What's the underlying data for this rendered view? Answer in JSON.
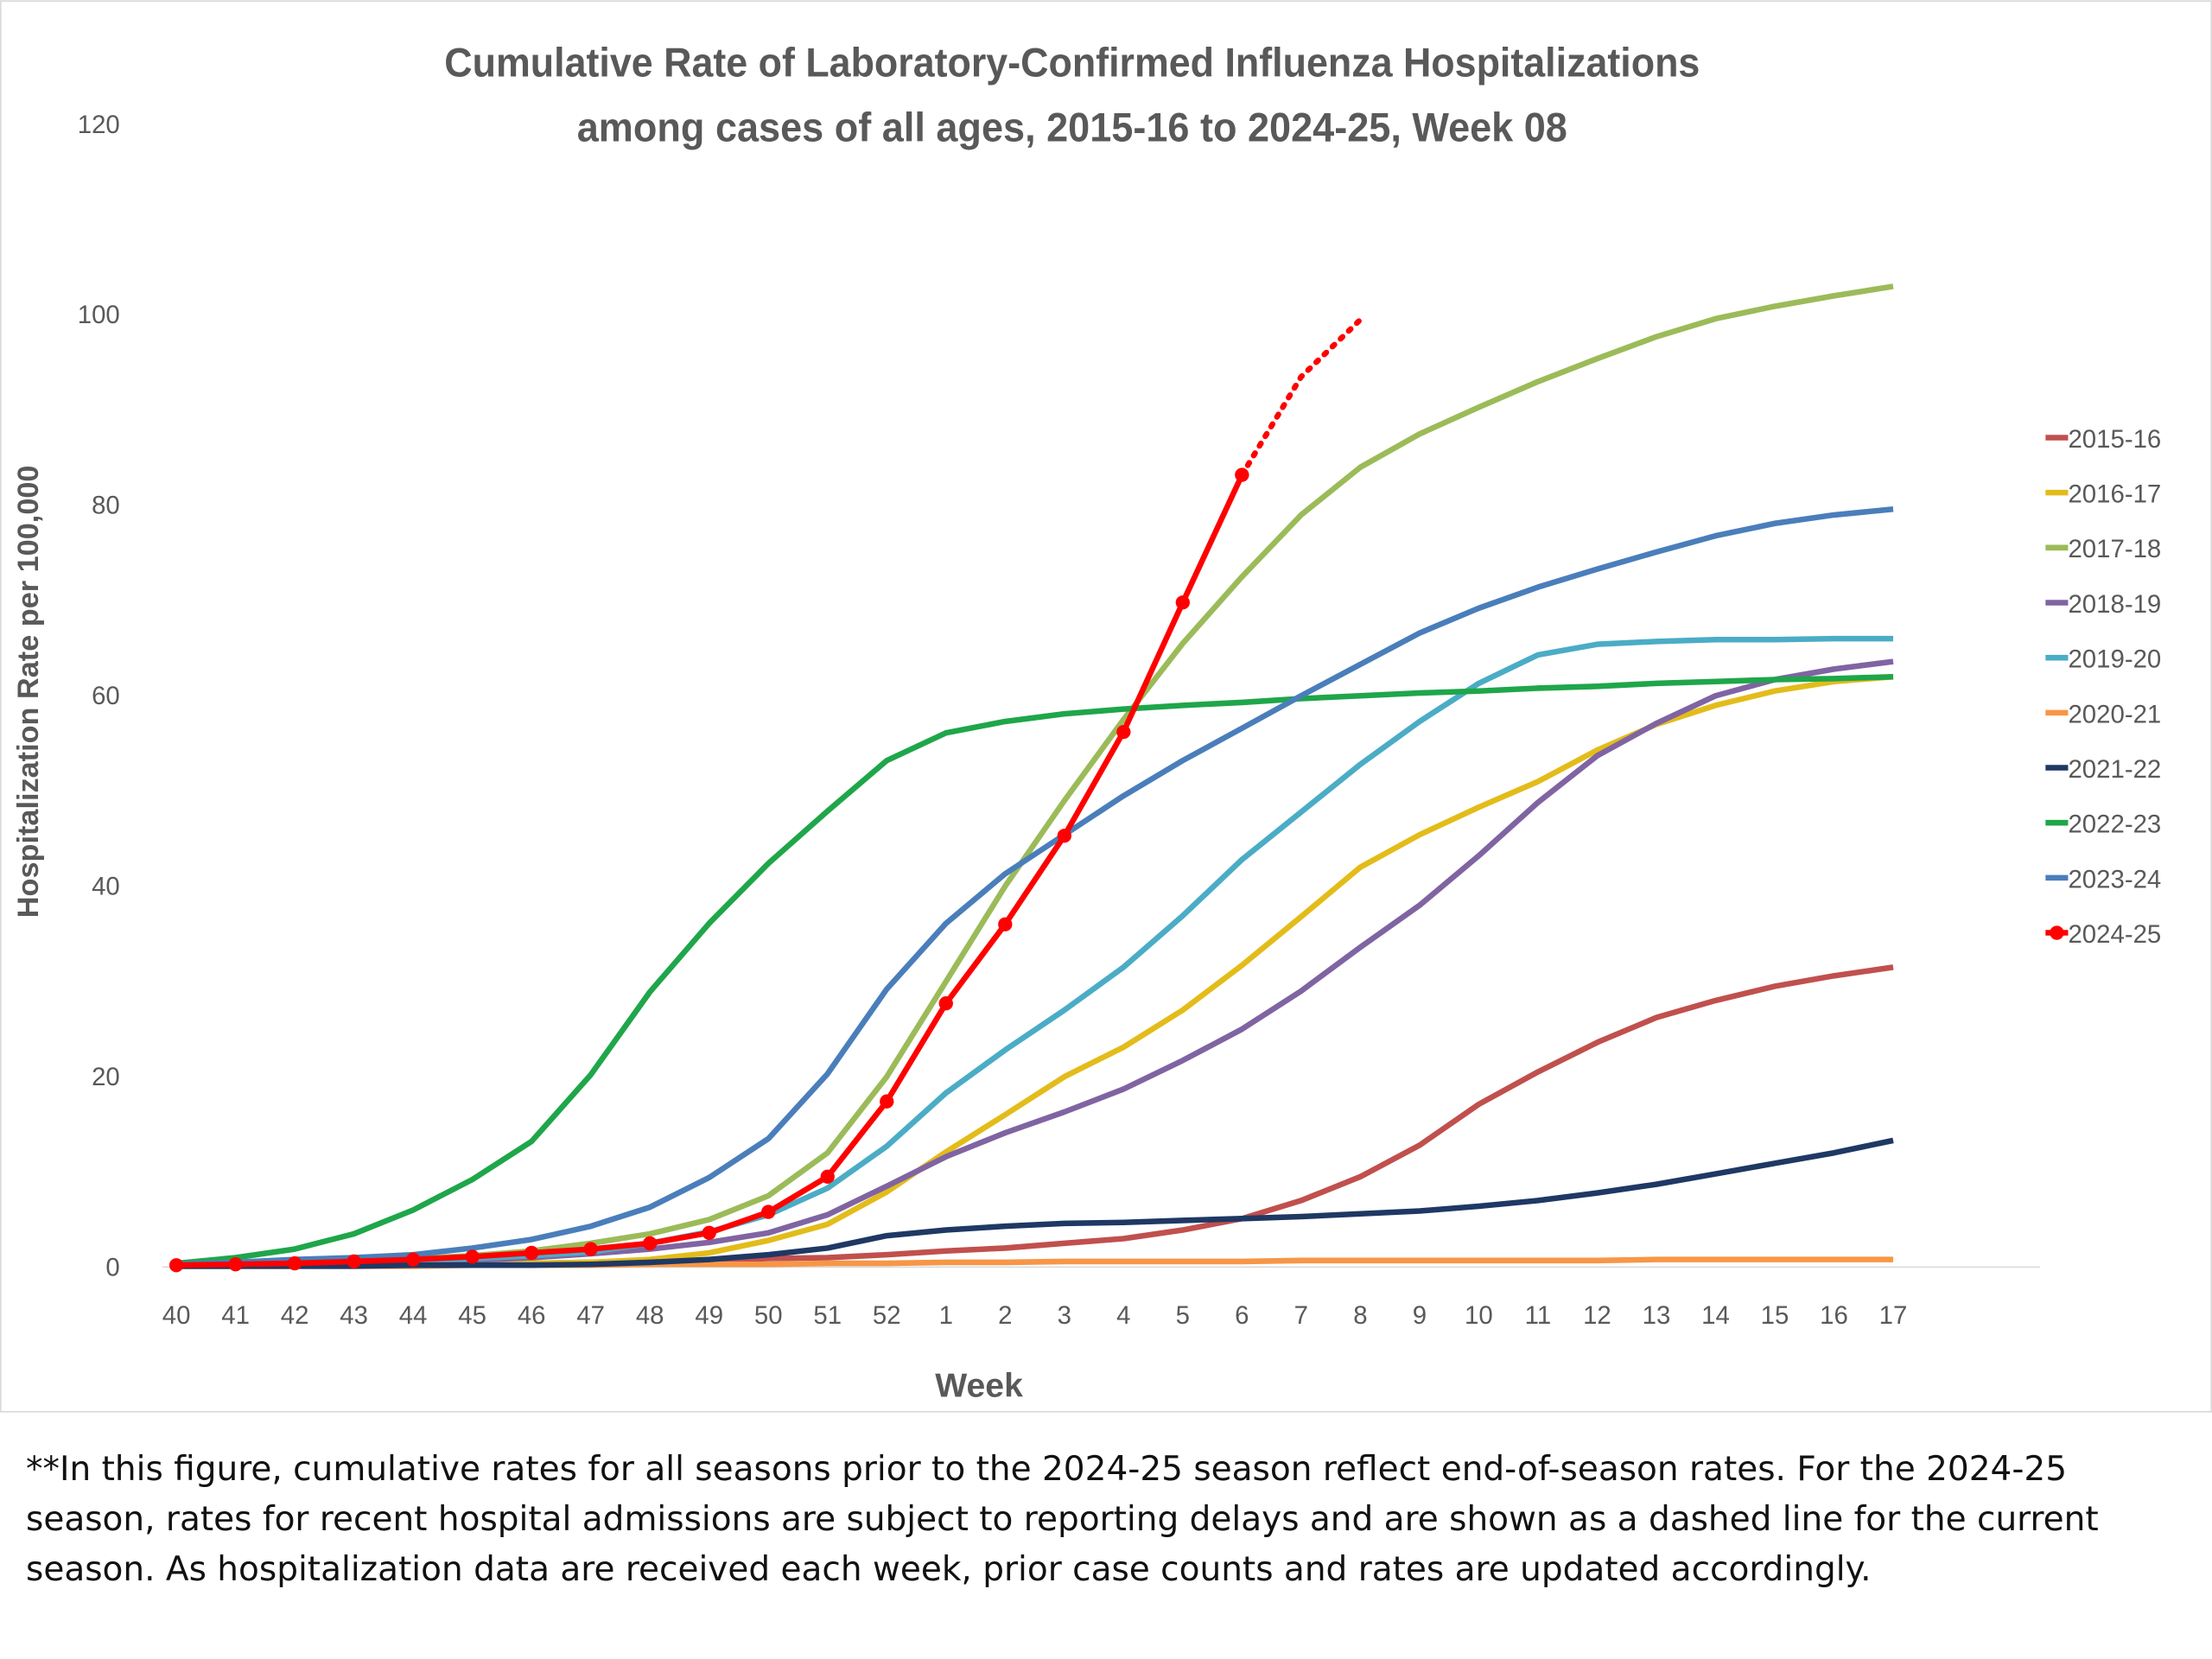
{
  "chart_data": {
    "type": "line",
    "title": [
      "Cumulative Rate of Laboratory-Confirmed Influenza Hospitalizations",
      "among cases of all ages, 2015-16 to 2024-25, Week 08"
    ],
    "x_label": "Week",
    "y_label": "Hospitalization Rate per 100,000",
    "categories": [
      "40",
      "41",
      "42",
      "43",
      "44",
      "45",
      "46",
      "47",
      "48",
      "49",
      "50",
      "51",
      "52",
      "1",
      "2",
      "3",
      "4",
      "5",
      "6",
      "7",
      "8",
      "9",
      "10",
      "11",
      "12",
      "13",
      "14",
      "15",
      "16",
      "17"
    ],
    "ylim": [
      0,
      120
    ],
    "yticks": [
      0,
      20,
      40,
      60,
      80,
      100,
      120
    ],
    "grid": false,
    "legend": "right",
    "dashed_after": "6",
    "series": [
      {
        "name": "2015-16",
        "color": "#c0504d",
        "values": [
          0.1,
          0.1,
          0.2,
          0.2,
          0.3,
          0.3,
          0.4,
          0.5,
          0.6,
          0.7,
          0.9,
          1.0,
          1.3,
          1.7,
          2.0,
          2.5,
          3.0,
          3.9,
          5.1,
          7.0,
          9.5,
          12.8,
          17.1,
          20.5,
          23.6,
          26.2,
          28.0,
          29.5,
          30.6,
          31.5
        ]
      },
      {
        "name": "2016-17",
        "color": "#e3bc1a",
        "values": [
          0.1,
          0.1,
          0.1,
          0.2,
          0.2,
          0.3,
          0.4,
          0.5,
          0.8,
          1.5,
          2.8,
          4.5,
          7.9,
          12.1,
          16.0,
          20.0,
          23.1,
          27.0,
          31.7,
          36.8,
          42.0,
          45.4,
          48.3,
          51.0,
          54.3,
          57.0,
          59.0,
          60.5,
          61.5,
          62.0
        ]
      },
      {
        "name": "2017-18",
        "color": "#9bbb59",
        "values": [
          0.2,
          0.3,
          0.5,
          0.7,
          0.9,
          1.2,
          1.7,
          2.5,
          3.5,
          5.0,
          7.5,
          12.0,
          20.0,
          30.0,
          40.0,
          49.0,
          57.5,
          65.5,
          72.5,
          79.0,
          84.0,
          87.5,
          90.3,
          93.0,
          95.4,
          97.7,
          99.6,
          100.9,
          102.0,
          103.0
        ]
      },
      {
        "name": "2018-19",
        "color": "#8064a2",
        "values": [
          0.1,
          0.2,
          0.3,
          0.4,
          0.5,
          0.7,
          1.0,
          1.4,
          1.9,
          2.6,
          3.6,
          5.5,
          8.5,
          11.6,
          14.1,
          16.3,
          18.7,
          21.7,
          25.0,
          29.0,
          33.6,
          38.0,
          43.2,
          48.8,
          53.7,
          57.1,
          60.0,
          61.7,
          62.8,
          63.6
        ]
      },
      {
        "name": "2019-20",
        "color": "#4bacc6",
        "values": [
          0.2,
          0.3,
          0.4,
          0.5,
          0.7,
          0.9,
          1.2,
          1.6,
          2.5,
          3.7,
          5.5,
          8.3,
          12.7,
          18.3,
          22.8,
          27.0,
          31.5,
          36.9,
          42.8,
          47.8,
          52.8,
          57.3,
          61.3,
          64.3,
          65.4,
          65.7,
          65.9,
          65.9,
          66.0,
          66.0
        ]
      },
      {
        "name": "2020-21",
        "color": "#f79646",
        "values": [
          0.1,
          0.1,
          0.1,
          0.1,
          0.1,
          0.2,
          0.2,
          0.2,
          0.3,
          0.3,
          0.3,
          0.4,
          0.4,
          0.5,
          0.5,
          0.6,
          0.6,
          0.6,
          0.6,
          0.7,
          0.7,
          0.7,
          0.7,
          0.7,
          0.7,
          0.8,
          0.8,
          0.8,
          0.8,
          0.8
        ]
      },
      {
        "name": "2021-22",
        "color": "#1f3864",
        "values": [
          0.1,
          0.1,
          0.1,
          0.1,
          0.2,
          0.2,
          0.2,
          0.3,
          0.5,
          0.8,
          1.3,
          2.0,
          3.3,
          3.9,
          4.3,
          4.6,
          4.7,
          4.9,
          5.1,
          5.3,
          5.6,
          5.9,
          6.4,
          7.0,
          7.8,
          8.7,
          9.8,
          10.9,
          12.0,
          13.3
        ]
      },
      {
        "name": "2022-23",
        "color": "#1fa64a",
        "values": [
          0.4,
          1.0,
          1.9,
          3.5,
          6.0,
          9.2,
          13.2,
          20.2,
          28.9,
          36.1,
          42.4,
          47.9,
          53.2,
          56.1,
          57.3,
          58.1,
          58.6,
          59.0,
          59.3,
          59.7,
          60.0,
          60.3,
          60.5,
          60.8,
          61.0,
          61.3,
          61.5,
          61.7,
          61.8,
          62.0
        ]
      },
      {
        "name": "2023-24",
        "color": "#4a7ebb",
        "values": [
          0.3,
          0.5,
          0.8,
          1.0,
          1.3,
          2.0,
          2.9,
          4.3,
          6.3,
          9.4,
          13.5,
          20.3,
          29.2,
          36.1,
          41.3,
          45.4,
          49.5,
          53.2,
          56.6,
          60.0,
          63.3,
          66.6,
          69.2,
          71.4,
          73.3,
          75.1,
          76.8,
          78.1,
          79.0,
          79.6
        ]
      },
      {
        "name": "2024-25",
        "color": "#ff0000",
        "markers": true,
        "values": [
          0.2,
          0.3,
          0.4,
          0.6,
          0.8,
          1.1,
          1.5,
          1.9,
          2.5,
          3.6,
          5.8,
          9.5,
          17.4,
          27.7,
          36.0,
          45.3,
          56.2,
          69.8,
          83.2,
          93.5,
          99.5,
          null,
          null,
          null,
          null,
          null,
          null,
          null,
          null,
          null
        ]
      }
    ]
  },
  "footnote": "**In this figure, cumulative rates for all seasons prior to the 2024-25 season reflect end-of-season rates. For the 2024-25 season, rates for recent hospital admissions are subject to reporting delays and are shown as a dashed line for the current season. As hospitalization data are received each week, prior case counts and rates are updated accordingly."
}
